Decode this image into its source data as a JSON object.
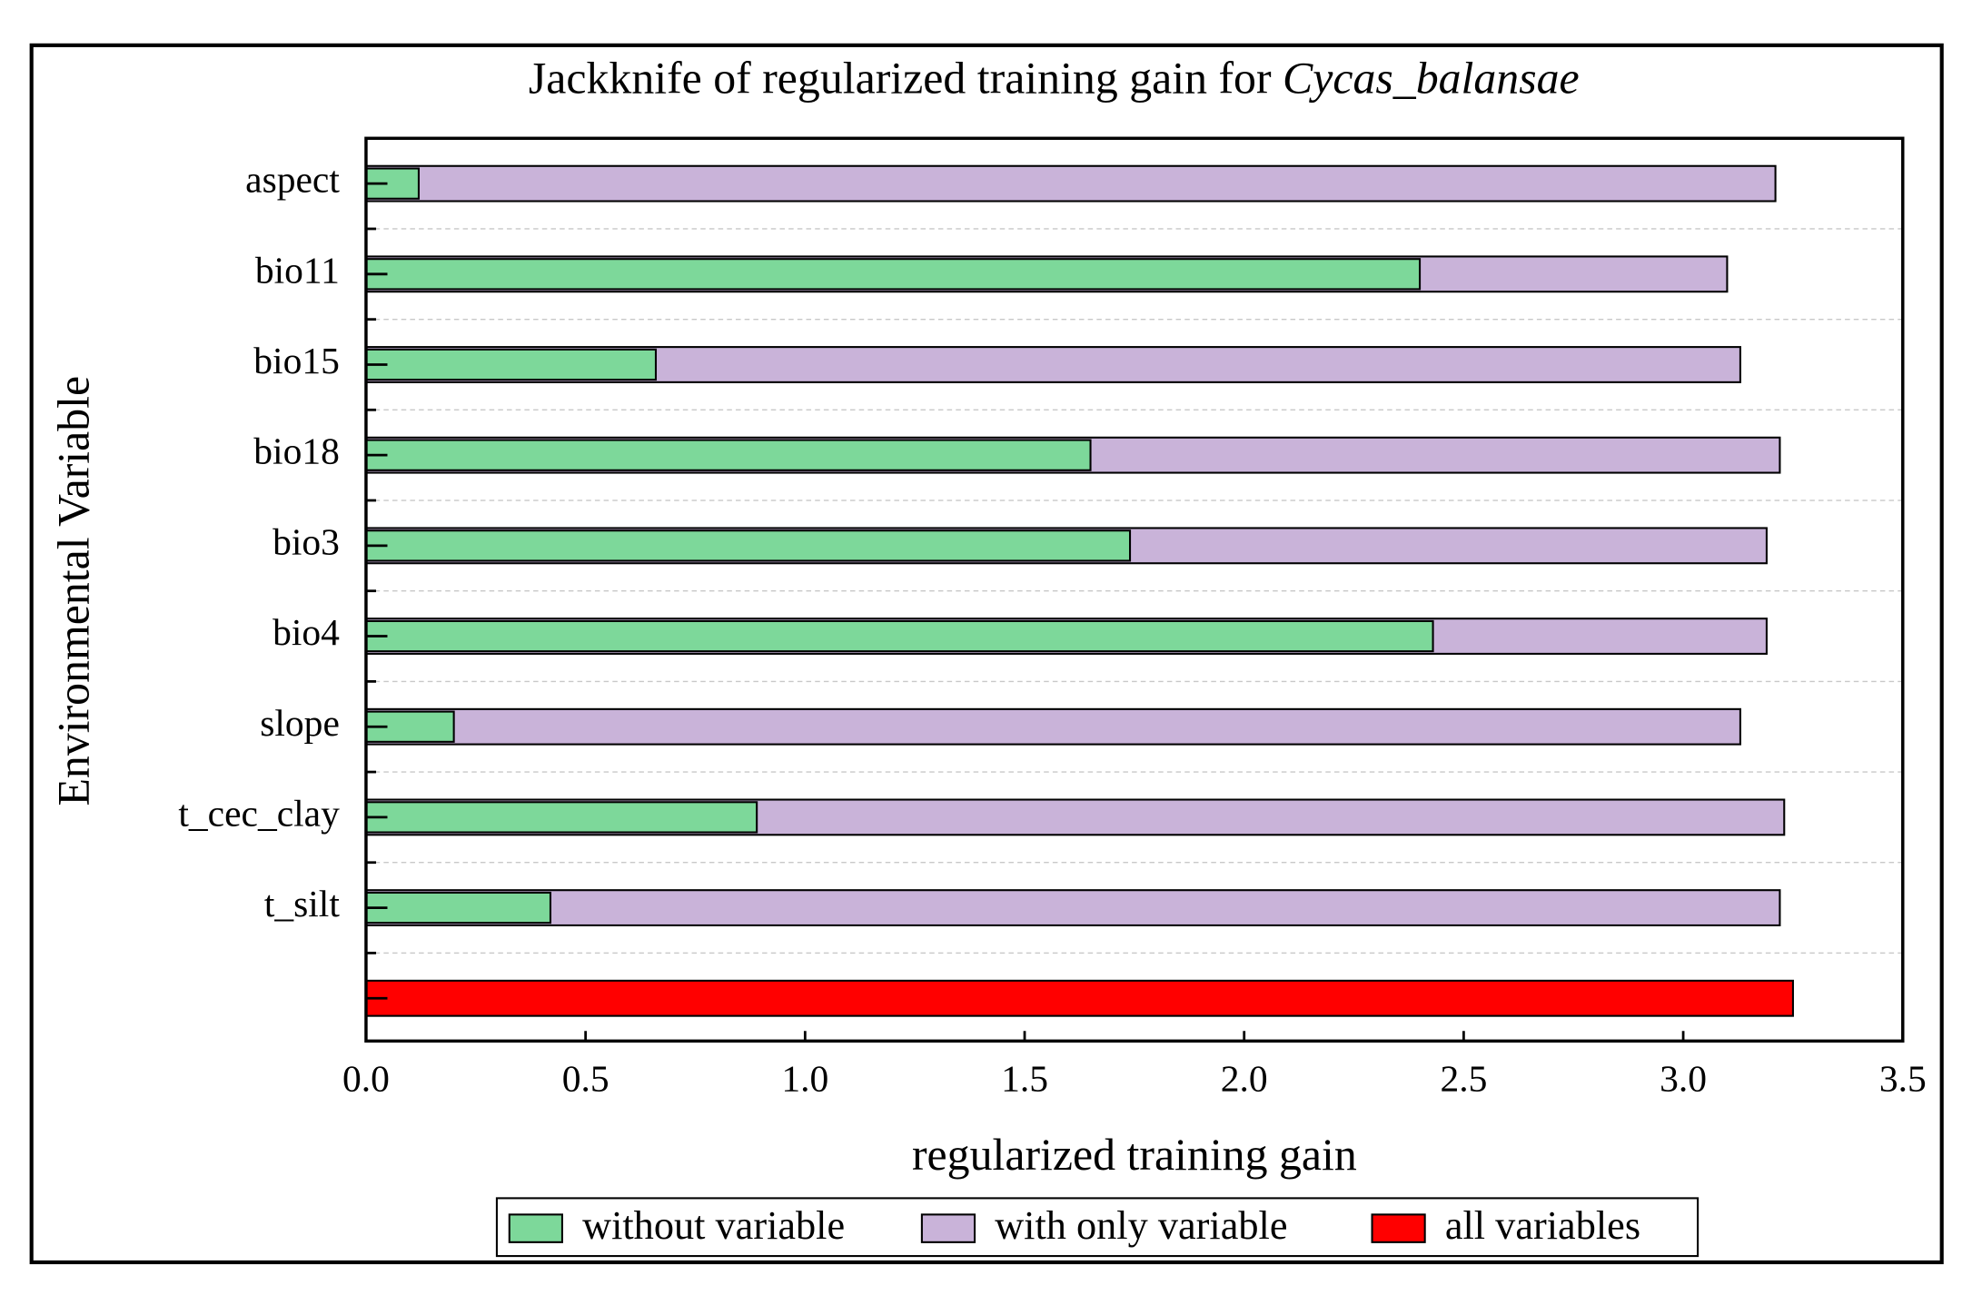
{
  "chart_data": {
    "type": "bar",
    "orientation": "horizontal",
    "title": "Jackknife of regularized training gain for",
    "title_italic": "Cycas_balansae",
    "xlabel": "regularized training gain",
    "ylabel": "Environmental Variable",
    "categories": [
      "aspect",
      "bio11",
      "bio15",
      "bio18",
      "bio3",
      "bio4",
      "slope",
      "t_cec_clay",
      "t_silt",
      null
    ],
    "series": [
      {
        "name": "with only variable",
        "color": "#c9b3d9",
        "values": [
          3.21,
          3.1,
          3.13,
          3.22,
          3.19,
          3.19,
          3.13,
          3.23,
          3.22,
          null
        ]
      },
      {
        "name": "without variable",
        "color": "#7dd89a",
        "values": [
          0.12,
          2.4,
          0.66,
          1.65,
          1.74,
          2.43,
          0.2,
          0.89,
          0.42,
          null
        ]
      },
      {
        "name": "all variables",
        "color": "#ff0000",
        "values": [
          null,
          null,
          null,
          null,
          null,
          null,
          null,
          null,
          null,
          3.25
        ]
      }
    ],
    "legend_order": [
      1,
      0,
      2
    ],
    "xlim": [
      0,
      3.5
    ],
    "xticks": [
      {
        "value": 0,
        "label": "0.0"
      },
      0.5,
      {
        "value": 1,
        "label": "1.0"
      },
      1.5,
      {
        "value": 2,
        "label": "2.0"
      },
      2.5,
      {
        "value": 3,
        "label": "3.0"
      },
      3.5
    ],
    "grid": true,
    "legend": "bottom"
  }
}
